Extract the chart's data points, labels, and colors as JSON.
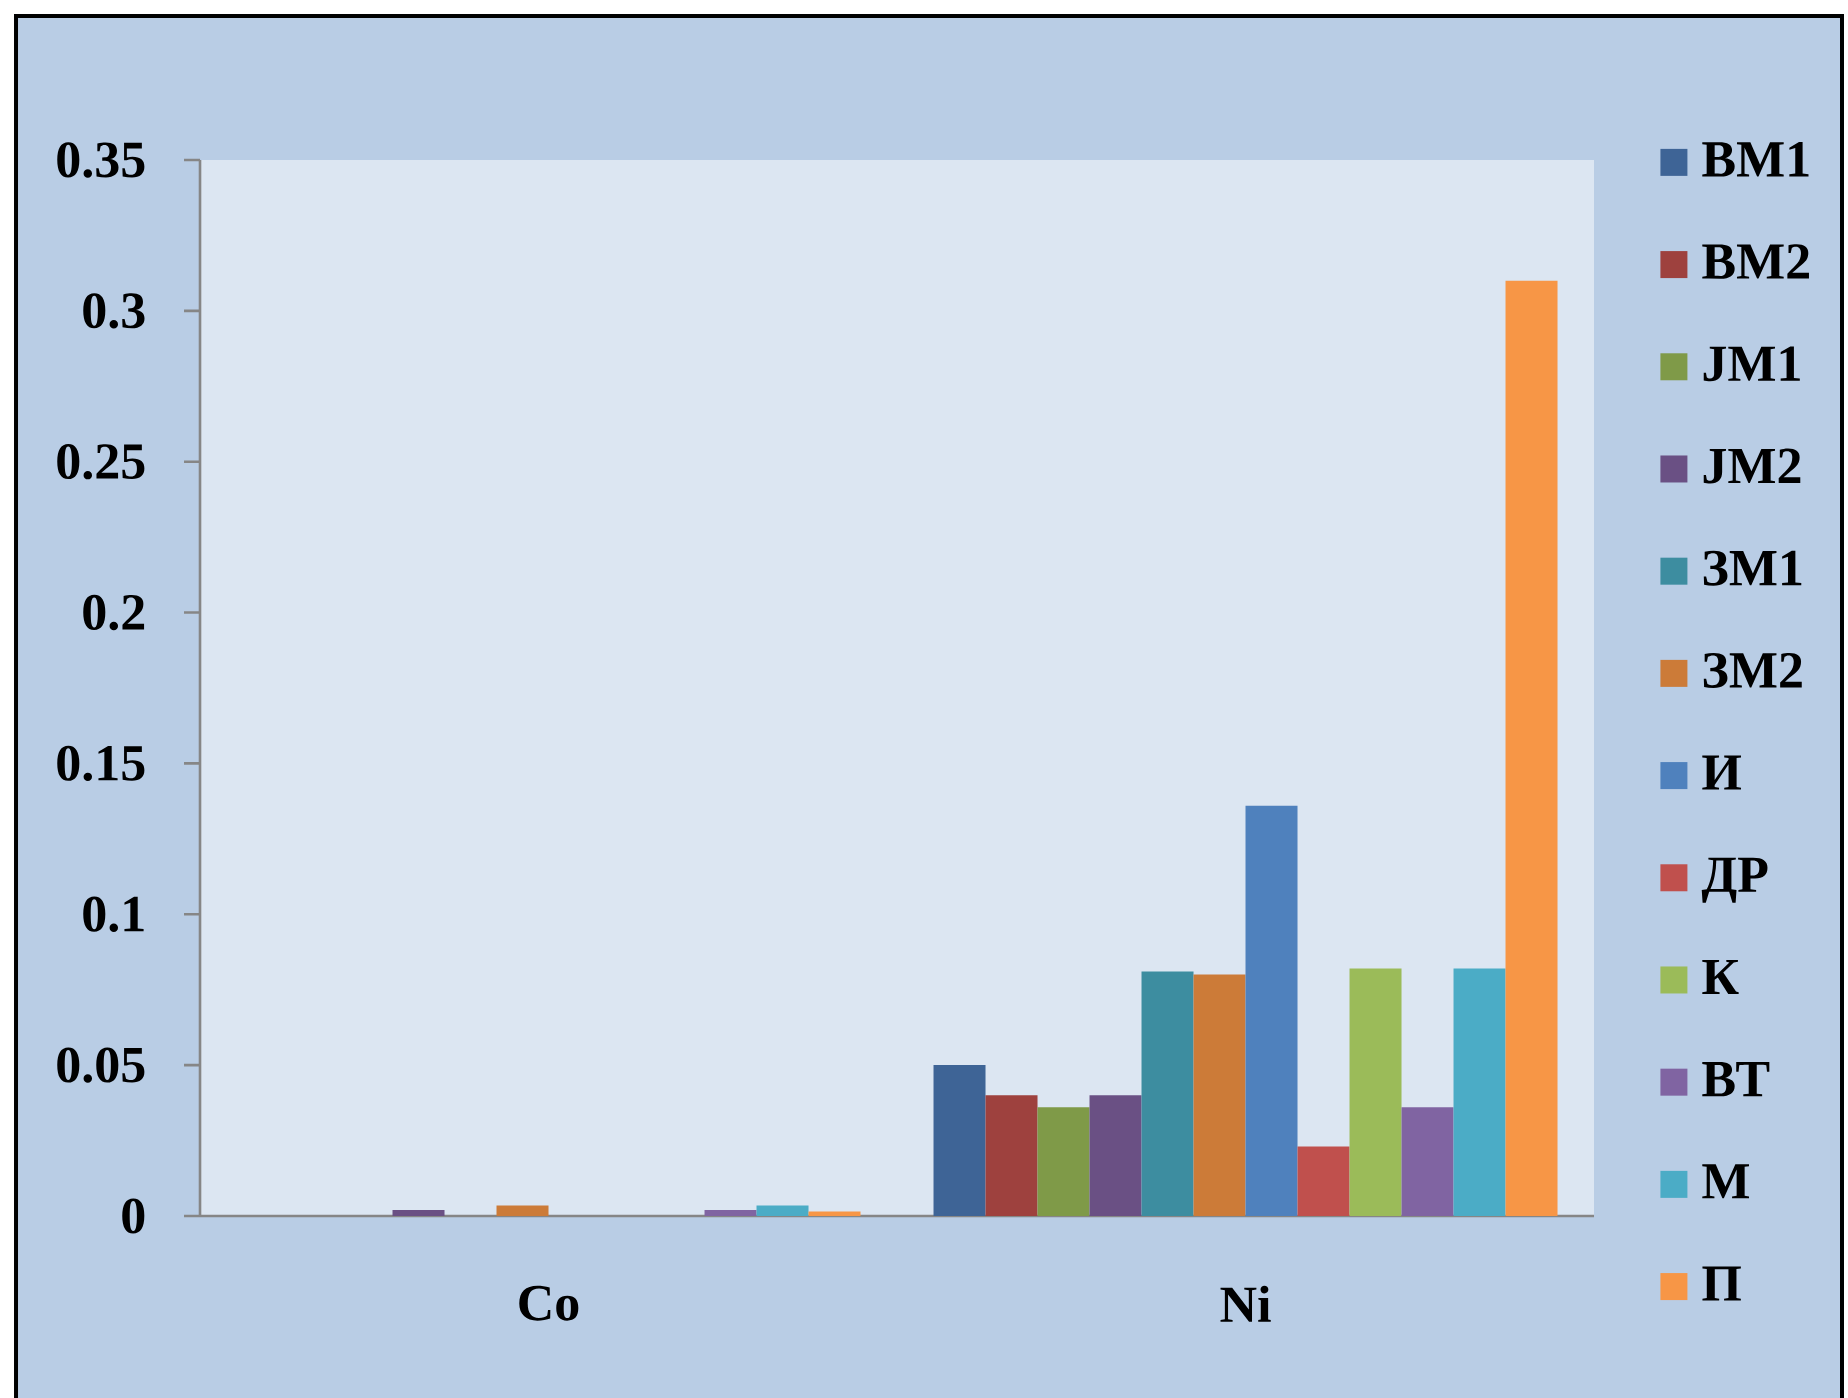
{
  "chart_data": {
    "type": "bar",
    "categories": [
      "Co",
      "Ni"
    ],
    "series": [
      {
        "name": "ВМ1",
        "color": "#3e6496",
        "values": [
          0,
          0.05
        ]
      },
      {
        "name": "ВМ2",
        "color": "#9e413e",
        "values": [
          0,
          0.04
        ]
      },
      {
        "name": "JМ1",
        "color": "#7f9a48",
        "values": [
          0,
          0.036
        ]
      },
      {
        "name": "JМ2",
        "color": "#6a5084",
        "values": [
          0.002,
          0.04
        ]
      },
      {
        "name": "ЗМ1",
        "color": "#3d8da0",
        "values": [
          0,
          0.081
        ]
      },
      {
        "name": "ЗМ2",
        "color": "#cc7b38",
        "values": [
          0.0035,
          0.08
        ]
      },
      {
        "name": "И",
        "color": "#4f81bd",
        "values": [
          0,
          0.136
        ]
      },
      {
        "name": "ДР",
        "color": "#c0504d",
        "values": [
          0,
          0.023
        ]
      },
      {
        "name": "К",
        "color": "#9bbb59",
        "values": [
          0,
          0.082
        ]
      },
      {
        "name": "ВТ",
        "color": "#8064a2",
        "values": [
          0.002,
          0.036
        ]
      },
      {
        "name": "М",
        "color": "#4bacc6",
        "values": [
          0.0035,
          0.082
        ]
      },
      {
        "name": "П",
        "color": "#f79646",
        "values": [
          0.0015,
          0.31
        ]
      }
    ],
    "ylim": [
      0,
      0.35
    ],
    "yticks": [
      0,
      0.05,
      0.1,
      0.15,
      0.2,
      0.25,
      0.3,
      0.35
    ],
    "legend": "right"
  }
}
